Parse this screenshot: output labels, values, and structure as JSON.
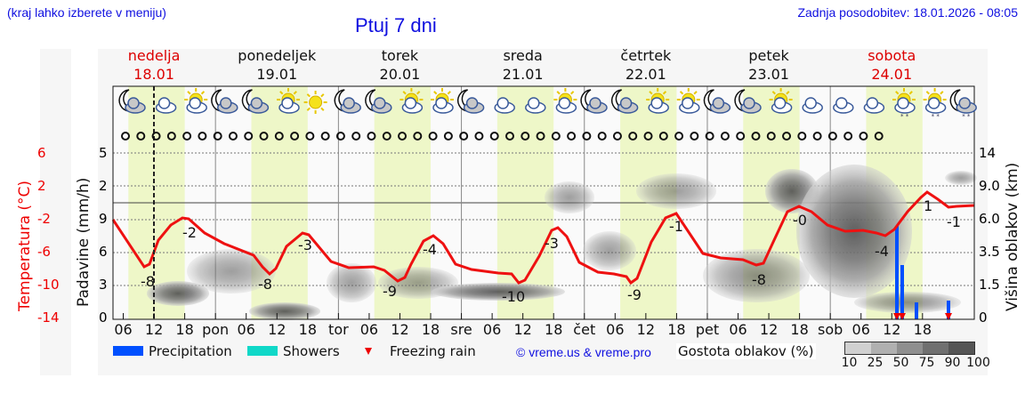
{
  "header": {
    "hint": "(kraj lahko izberete v meniju)",
    "title": "Ptuj 7 dni",
    "updated": "Zadnja posodobitev: 18.01.2026 - 08:05"
  },
  "days": [
    {
      "name": "nedelja",
      "date": "18.01",
      "weekend": true
    },
    {
      "name": "ponedeljek",
      "date": "19.01",
      "weekend": false
    },
    {
      "name": "torek",
      "date": "20.01",
      "weekend": false
    },
    {
      "name": "sreda",
      "date": "21.01",
      "weekend": false
    },
    {
      "name": "četrtek",
      "date": "22.01",
      "weekend": false
    },
    {
      "name": "petek",
      "date": "23.01",
      "weekend": false
    },
    {
      "name": "sobota",
      "date": "24.01",
      "weekend": true
    }
  ],
  "axes": {
    "temperature_label": "Temperatura (°C)",
    "temperature_ticks": [
      "6",
      "2",
      "-2",
      "-6",
      "-10",
      "-14"
    ],
    "precip_label": "Padavine (mm/h)",
    "precip_ticks": [
      "5",
      "2",
      "9",
      "6",
      "3",
      "0"
    ],
    "cloud_height_label": "Višina oblakov (km)",
    "cloud_height_ticks": [
      "14",
      "9.0",
      "6.0",
      "3.5",
      "1.5",
      "0"
    ],
    "x_ticks": [
      "06",
      "12",
      "18",
      "pon",
      "06",
      "12",
      "18",
      "tor",
      "06",
      "12",
      "18",
      "sre",
      "06",
      "12",
      "18",
      "čet",
      "06",
      "12",
      "18",
      "pet",
      "06",
      "12",
      "18",
      "sob",
      "06",
      "12",
      "18"
    ]
  },
  "legend": {
    "precipitation": "Precipitation",
    "showers": "Showers",
    "freezing_rain": "Freezing rain",
    "copyright": "© vreme.us & vreme.pro",
    "cloud_density": "Gostota oblakov (%)",
    "cloud_density_scale": [
      "10",
      "25",
      "50",
      "75",
      "90",
      "100"
    ]
  },
  "colors": {
    "precipitation": "#0050ff",
    "showers": "#10d8c8",
    "freezing_rain": "#ee0000",
    "temperature_line": "#ee1111",
    "daytime_band": "#eef7c8",
    "title": "#1010e0"
  },
  "weather_icons": [
    "moon-cloud",
    "cloud",
    "sun-cloud",
    "moon-cloud",
    "moon-cloud",
    "sun-cloud",
    "sun",
    "moon-cloud",
    "moon-cloud",
    "sun-cloud",
    "sun-cloud",
    "moon-cloud",
    "cloud",
    "cloud",
    "sun-cloud",
    "moon-cloud",
    "moon-cloud",
    "sun-cloud",
    "sun-cloud",
    "moon-cloud",
    "moon-cloud",
    "sun-cloud",
    "cloud",
    "cloud",
    "cloud",
    "sun-cloud-snow",
    "sun-cloud-snow",
    "moon-cloud-snow"
  ],
  "chart_data": {
    "type": "line",
    "title": "Ptuj 7 dni",
    "xlabel": "",
    "ylabel": "Temperatura (°C)",
    "ylim": [
      -14,
      6
    ],
    "x": [
      "18.01 04h",
      "18.01 08h",
      "18.01 14h",
      "18.01 22h",
      "19.01 05h",
      "19.01 11h",
      "19.01 17h",
      "19.01 23h",
      "20.01 05h",
      "20.01 11h",
      "20.01 17h",
      "20.01 23h",
      "21.01 05h",
      "21.01 11h",
      "21.01 17h",
      "21.01 23h",
      "22.01 05h",
      "22.01 11h",
      "22.01 17h",
      "22.01 23h",
      "23.01 05h",
      "23.01 11h",
      "23.01 17h",
      "23.01 23h",
      "24.01 05h",
      "24.01 11h",
      "24.01 17h",
      "24.01 23h"
    ],
    "series": [
      {
        "name": "Temperatura (°C)",
        "values": [
          -2,
          -8,
          -2,
          -5,
          -8,
          -3,
          -7,
          -7,
          -9,
          -4,
          -7,
          -8,
          -10,
          -3,
          -8,
          -9,
          -9,
          -1,
          -6,
          -7,
          -8,
          0,
          -3,
          -3,
          -4,
          1,
          -1,
          -1
        ]
      }
    ],
    "annotations": [
      "-8",
      "-2",
      "-8",
      "-3",
      "-9",
      "-4",
      "-10",
      "-3",
      "-9",
      "-1",
      "-8",
      "-0",
      "-4",
      "1",
      "-1"
    ],
    "precipitation_mm_h": [
      {
        "time": "24.01 09h",
        "value": 9,
        "freezing_rain": true
      },
      {
        "time": "24.01 10h",
        "value": 5.5,
        "freezing_rain": true
      },
      {
        "time": "24.01 13h",
        "value": 1.5,
        "freezing_rain": false
      },
      {
        "time": "24.01 19h",
        "value": 1.5,
        "freezing_rain": true
      }
    ],
    "secondary_axes": {
      "precipitation": {
        "label": "Padavine (mm/h)",
        "ticks": [
          0,
          3,
          6,
          9,
          2,
          5
        ]
      },
      "cloud_height_km": {
        "label": "Višina oblakov (km)",
        "ticks": [
          0,
          1.5,
          3.5,
          6.0,
          9.0,
          14
        ]
      }
    },
    "cloud_density_scale": [
      10,
      25,
      50,
      75,
      90,
      100
    ],
    "grid": true,
    "legend_position": "bottom"
  }
}
